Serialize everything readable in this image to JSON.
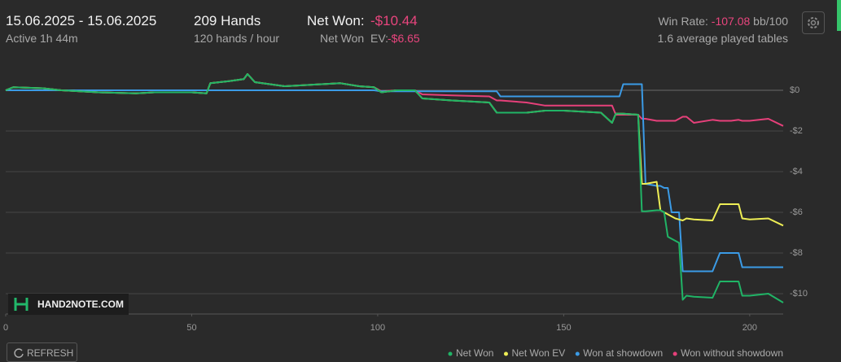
{
  "header": {
    "date_range": "15.06.2025 - 15.06.2025",
    "active": "Active 1h 44m",
    "hands": "209 Hands",
    "hands_rate": "120 hands / hour",
    "net_won_label": "Net Won:",
    "net_won_value": "-$10.44",
    "net_won_ev_label": "Net Won  EV:",
    "net_won_ev_value": "-$6.65",
    "win_rate_label": "Win Rate:",
    "win_rate_value": "-107.08",
    "win_rate_unit": "bb/100",
    "tables": "1.6 average played tables"
  },
  "logo": "HAND2NOTE.COM",
  "refresh_button": "REFRESH",
  "chart_data": {
    "type": "line",
    "grid": true,
    "x": [
      0,
      2,
      10,
      15,
      20,
      25,
      35,
      40,
      50,
      54,
      55,
      60,
      64,
      65,
      67,
      75,
      85,
      90,
      95,
      99,
      101,
      105,
      110,
      112,
      120,
      130,
      132,
      133,
      140,
      145,
      150,
      160,
      163,
      164,
      165,
      166,
      170,
      171,
      172,
      175,
      176,
      177,
      178,
      179,
      180,
      181,
      182,
      183,
      185,
      190,
      192,
      195,
      197,
      198,
      200,
      205,
      209
    ],
    "xlim": [
      0,
      209
    ],
    "xticks": [
      0,
      50,
      100,
      150,
      200
    ],
    "ylim": [
      -11,
      1.5
    ],
    "yticks": [
      {
        "value": 0,
        "label": "$0"
      },
      {
        "value": -2,
        "label": "-$2"
      },
      {
        "value": -4,
        "label": "-$4"
      },
      {
        "value": -6,
        "label": "-$6"
      },
      {
        "value": -8,
        "label": "-$8"
      },
      {
        "value": -10,
        "label": "-$10"
      }
    ],
    "series": [
      {
        "name": "Net Won",
        "color": "#20b466",
        "values": [
          0,
          0.15,
          0.1,
          0,
          -0.05,
          -0.1,
          -0.15,
          -0.1,
          -0.1,
          -0.15,
          0.35,
          0.45,
          0.55,
          0.8,
          0.4,
          0.2,
          0.3,
          0.35,
          0.2,
          0.15,
          -0.1,
          0,
          0,
          -0.4,
          -0.5,
          -0.6,
          -1.1,
          -1.1,
          -1.1,
          -1.0,
          -1.0,
          -1.1,
          -1.6,
          -1.15,
          -1.15,
          -1.15,
          -1.2,
          -5.95,
          -5.95,
          -5.9,
          -5.9,
          -6.0,
          -7.2,
          -7.3,
          -7.4,
          -7.5,
          -10.3,
          -10.1,
          -10.15,
          -10.2,
          -9.4,
          -9.4,
          -9.4,
          -10.1,
          -10.1,
          -10.0,
          -10.44
        ]
      },
      {
        "name": "Net Won  EV",
        "color": "#eeee55",
        "values": [
          0,
          0.15,
          0.1,
          0,
          -0.05,
          -0.1,
          -0.15,
          -0.1,
          -0.1,
          -0.15,
          0.35,
          0.45,
          0.55,
          0.8,
          0.4,
          0.2,
          0.3,
          0.35,
          0.2,
          0.15,
          -0.1,
          0,
          0,
          -0.4,
          -0.5,
          -0.6,
          -1.1,
          -1.1,
          -1.1,
          -1.0,
          -1.0,
          -1.1,
          -1.6,
          -1.15,
          -1.15,
          -1.15,
          -1.2,
          -4.6,
          -4.6,
          -4.5,
          -5.9,
          -6.0,
          -6.1,
          -6.2,
          -6.3,
          -6.35,
          -6.4,
          -6.3,
          -6.35,
          -6.4,
          -5.6,
          -5.6,
          -5.6,
          -6.3,
          -6.35,
          -6.3,
          -6.65
        ]
      },
      {
        "name": "Won at showdown",
        "color": "#3b9be6",
        "values": [
          0,
          0,
          0,
          0,
          0,
          0,
          0,
          0,
          0,
          0,
          0,
          0,
          0,
          0,
          0,
          0,
          0,
          0,
          0,
          0,
          -0.05,
          -0.05,
          -0.05,
          -0.05,
          -0.05,
          -0.05,
          -0.05,
          -0.3,
          -0.3,
          -0.3,
          -0.3,
          -0.3,
          -0.3,
          -0.3,
          -0.3,
          0.3,
          0.3,
          0.3,
          -4.6,
          -4.7,
          -4.7,
          -4.8,
          -4.8,
          -6.0,
          -6.0,
          -6.0,
          -8.9,
          -8.9,
          -8.9,
          -8.9,
          -8.0,
          -8.0,
          -8.0,
          -8.7,
          -8.7,
          -8.7,
          -8.7
        ]
      },
      {
        "name": "Won without showdown",
        "color": "#e6407a",
        "values": [
          0,
          0.15,
          0.1,
          0,
          -0.05,
          -0.1,
          -0.15,
          -0.1,
          -0.1,
          -0.15,
          0.35,
          0.45,
          0.55,
          0.8,
          0.4,
          0.2,
          0.3,
          0.35,
          0.2,
          0.15,
          -0.05,
          0,
          0,
          -0.2,
          -0.25,
          -0.3,
          -0.5,
          -0.5,
          -0.6,
          -0.75,
          -0.75,
          -0.75,
          -0.75,
          -1.2,
          -1.2,
          -1.2,
          -1.2,
          -1.4,
          -1.4,
          -1.5,
          -1.5,
          -1.5,
          -1.5,
          -1.5,
          -1.5,
          -1.4,
          -1.3,
          -1.3,
          -1.6,
          -1.45,
          -1.5,
          -1.5,
          -1.45,
          -1.5,
          -1.5,
          -1.4,
          -1.75
        ]
      }
    ]
  }
}
